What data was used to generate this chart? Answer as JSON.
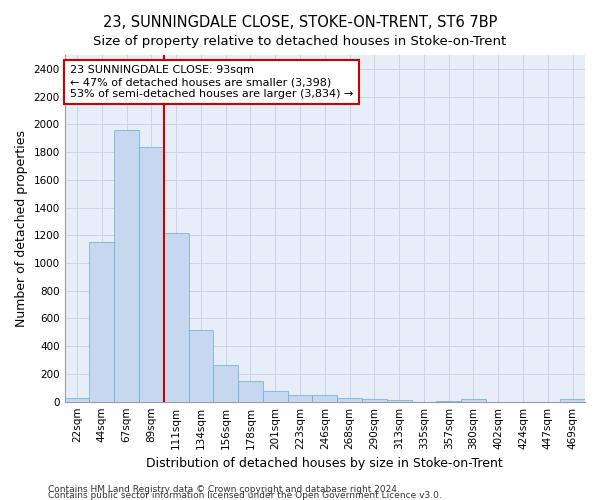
{
  "title": "23, SUNNINGDALE CLOSE, STOKE-ON-TRENT, ST6 7BP",
  "subtitle": "Size of property relative to detached houses in Stoke-on-Trent",
  "xlabel": "Distribution of detached houses by size in Stoke-on-Trent",
  "ylabel": "Number of detached properties",
  "categories": [
    "22sqm",
    "44sqm",
    "67sqm",
    "89sqm",
    "111sqm",
    "134sqm",
    "156sqm",
    "178sqm",
    "201sqm",
    "223sqm",
    "246sqm",
    "268sqm",
    "290sqm",
    "313sqm",
    "335sqm",
    "357sqm",
    "380sqm",
    "402sqm",
    "424sqm",
    "447sqm",
    "469sqm"
  ],
  "values": [
    30,
    1150,
    1960,
    1835,
    1215,
    515,
    265,
    150,
    80,
    50,
    45,
    25,
    20,
    15,
    0,
    5,
    18,
    0,
    0,
    0,
    18
  ],
  "bar_color": "#c5d8f0",
  "bar_edge_color": "#6aaad4",
  "vline_color": "#cc0000",
  "vline_x_idx": 3,
  "annotation_line1": "23 SUNNINGDALE CLOSE: 93sqm",
  "annotation_line2": "← 47% of detached houses are smaller (3,398)",
  "annotation_line3": "53% of semi-detached houses are larger (3,834) →",
  "annotation_box_color": "#cc0000",
  "ylim": [
    0,
    2500
  ],
  "yticks": [
    0,
    200,
    400,
    600,
    800,
    1000,
    1200,
    1400,
    1600,
    1800,
    2000,
    2200,
    2400
  ],
  "grid_color": "#c8d4e8",
  "background_color": "#e8eef8",
  "footer1": "Contains HM Land Registry data © Crown copyright and database right 2024.",
  "footer2": "Contains public sector information licensed under the Open Government Licence v3.0.",
  "title_fontsize": 10.5,
  "subtitle_fontsize": 9.5,
  "xlabel_fontsize": 9,
  "ylabel_fontsize": 9,
  "tick_fontsize": 7.5,
  "annotation_fontsize": 8,
  "footer_fontsize": 6.5
}
